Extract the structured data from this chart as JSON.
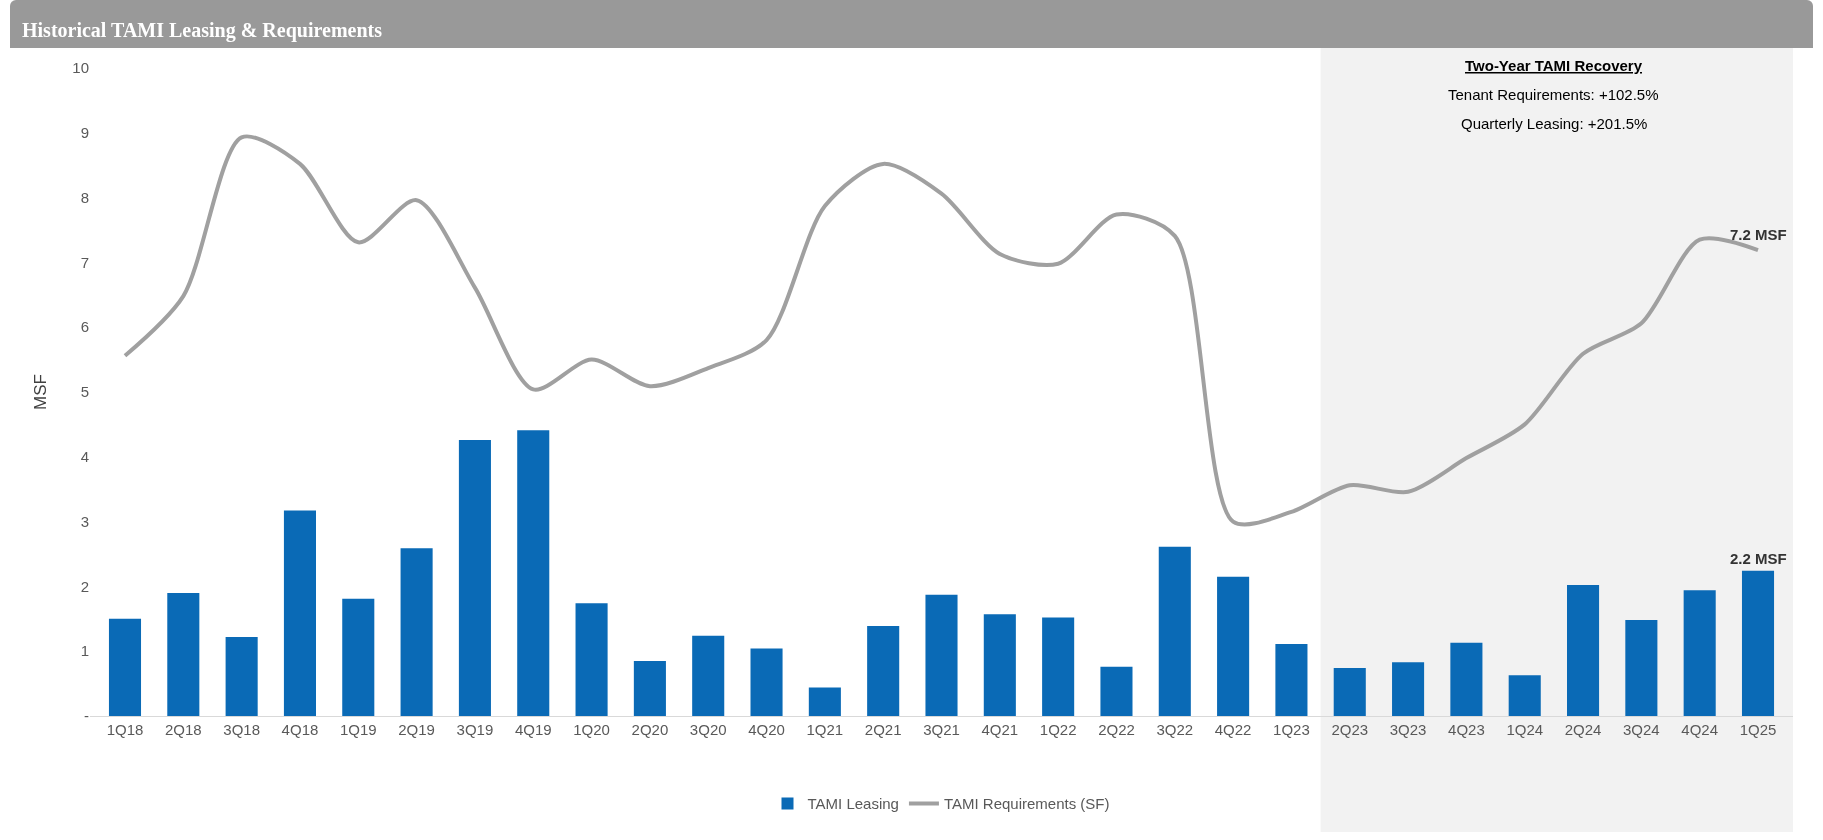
{
  "chart_data": {
    "type": "bar",
    "title": "Historical TAMI Leasing & Requirements",
    "ylabel": "MSF",
    "categories": [
      "1Q18",
      "2Q18",
      "3Q18",
      "4Q18",
      "1Q19",
      "2Q19",
      "3Q19",
      "4Q19",
      "1Q20",
      "2Q20",
      "3Q20",
      "4Q20",
      "1Q21",
      "2Q21",
      "3Q21",
      "4Q21",
      "1Q22",
      "2Q22",
      "3Q22",
      "4Q22",
      "1Q23",
      "2Q23",
      "3Q23",
      "4Q23",
      "1Q24",
      "2Q24",
      "3Q24",
      "4Q24",
      "1Q25"
    ],
    "series": [
      {
        "name": "TAMI Leasing",
        "color": "#0a6ab6",
        "values": [
          1.5,
          1.9,
          1.22,
          3.17,
          1.81,
          2.59,
          4.26,
          4.41,
          1.74,
          0.85,
          1.24,
          1.04,
          0.44,
          1.39,
          1.87,
          1.57,
          1.52,
          0.76,
          2.61,
          2.15,
          1.11,
          0.74,
          0.83,
          1.13,
          0.63,
          2.02,
          1.48,
          1.94,
          2.24
        ]
      },
      {
        "name": "TAMI Requirements (SF)",
        "type": "line",
        "color": "#a0a0a0",
        "values": [
          5.56,
          6.48,
          8.93,
          8.52,
          7.31,
          7.96,
          6.61,
          5.04,
          5.5,
          5.09,
          5.37,
          5.8,
          7.87,
          8.52,
          8.06,
          7.13,
          6.98,
          7.74,
          7.41,
          3.0,
          3.15,
          3.56,
          3.46,
          3.98,
          4.5,
          5.59,
          6.06,
          7.35,
          7.19
        ]
      }
    ],
    "ylim": [
      0,
      10
    ],
    "yticks": [
      {
        "value": 0,
        "label": "-"
      },
      1,
      2,
      3,
      4,
      5,
      6,
      7,
      8,
      9,
      10
    ],
    "grid": false,
    "legend": "bottom",
    "marker": "none",
    "line_style": "solid",
    "bands": [
      {
        "axis": "x",
        "from": "2Q23",
        "to": "1Q25",
        "color": "#f2f2f2"
      }
    ],
    "annotations": [
      "Two-Year TAMI Recovery",
      "Tenant Requirements: +102.5%",
      "Quarterly Leasing: +201.5%",
      {
        "text": "7.2 MSF",
        "x": "1Q25",
        "y": 7.2
      },
      {
        "text": "2.2 MSF",
        "x": "1Q25",
        "y": 2.2
      }
    ]
  }
}
